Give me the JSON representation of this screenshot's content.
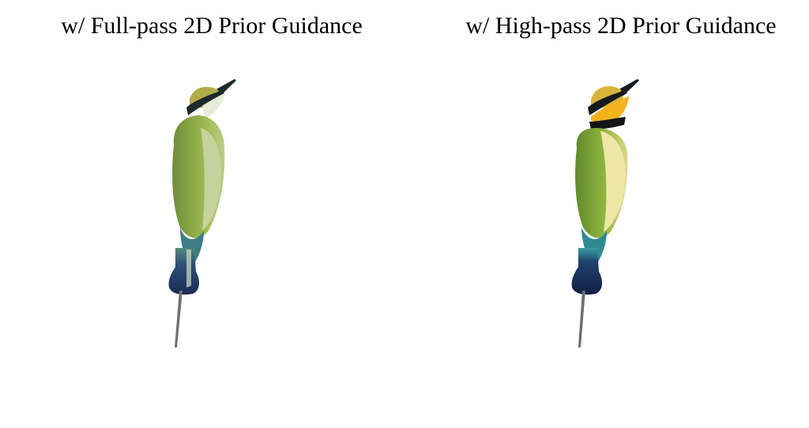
{
  "panels": [
    {
      "caption": "w/ Full-pass 2D Prior Guidance",
      "image_subject": "bee-eater bird render (dull green, low contrast)",
      "colors": {
        "head": "#b7b24a",
        "eye_stripe": "#1d2a2a",
        "throat": "#e8ecd8",
        "wing": "#8ea846",
        "belly": "#c8d29a",
        "tail": "#1f3560",
        "tail_tint": "#3f7a7a"
      }
    },
    {
      "caption": "w/ High-pass 2D Prior Guidance",
      "image_subject": "bee-eater bird render (vivid yellow throat, sharp details)",
      "colors": {
        "head": "#d4b33a",
        "eye_stripe": "#141a1e",
        "throat": "#f2b31c",
        "wing": "#84a83a",
        "belly": "#eee7a6",
        "tail": "#1a2b55",
        "tail_tint": "#2f8a92"
      }
    }
  ]
}
